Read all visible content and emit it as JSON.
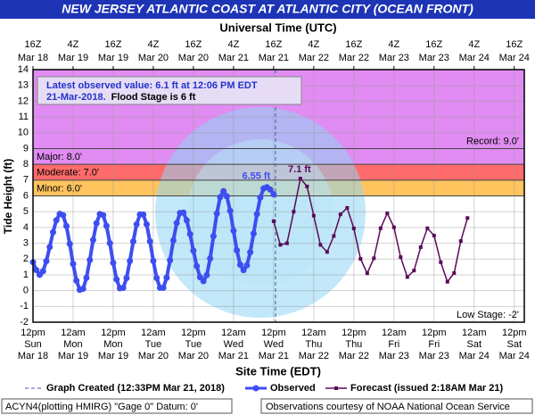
{
  "chart_data": {
    "type": "line",
    "title": "NEW JERSEY ATLANTIC COAST AT ATLANTIC CITY (OCEAN FRONT)",
    "top_axis_label": "Universal Time (UTC)",
    "xlabel": "Site Time (EDT)",
    "ylabel": "Tide Height (ft)",
    "grid": true,
    "xlim": [
      0,
      147
    ],
    "ylim": [
      -2,
      14
    ],
    "yticks": [
      -2,
      -1,
      0,
      1,
      2,
      3,
      4,
      5,
      6,
      7,
      8,
      9,
      10,
      11,
      12,
      13,
      14
    ],
    "xticks": [
      {
        "value": 0,
        "label": [
          "12pm",
          "Sun",
          "Mar 18"
        ]
      },
      {
        "value": 12,
        "label": [
          "12am",
          "Mon",
          "Mar 19"
        ]
      },
      {
        "value": 24,
        "label": [
          "12pm",
          "Mon",
          "Mar 19"
        ]
      },
      {
        "value": 36,
        "label": [
          "12am",
          "Tue",
          "Mar 20"
        ]
      },
      {
        "value": 48,
        "label": [
          "12pm",
          "Tue",
          "Mar 20"
        ]
      },
      {
        "value": 60,
        "label": [
          "12am",
          "Wed",
          "Mar 21"
        ]
      },
      {
        "value": 72,
        "label": [
          "12pm",
          "Wed",
          "Mar 21"
        ]
      },
      {
        "value": 84,
        "label": [
          "12am",
          "Thu",
          "Mar 22"
        ]
      },
      {
        "value": 96,
        "label": [
          "12pm",
          "Thu",
          "Mar 22"
        ]
      },
      {
        "value": 108,
        "label": [
          "12am",
          "Fri",
          "Mar 23"
        ]
      },
      {
        "value": 120,
        "label": [
          "12pm",
          "Fri",
          "Mar 23"
        ]
      },
      {
        "value": 132,
        "label": [
          "12am",
          "Sat",
          "Mar 24"
        ]
      },
      {
        "value": 144,
        "label": [
          "12pm",
          "Sat",
          "Mar 24"
        ]
      }
    ],
    "x2ticks": [
      {
        "value": 0,
        "label": [
          "16Z",
          "Mar 18"
        ]
      },
      {
        "value": 12,
        "label": [
          "4Z",
          "Mar 19"
        ]
      },
      {
        "value": 24,
        "label": [
          "16Z",
          "Mar 19"
        ]
      },
      {
        "value": 36,
        "label": [
          "4Z",
          "Mar 20"
        ]
      },
      {
        "value": 48,
        "label": [
          "16Z",
          "Mar 20"
        ]
      },
      {
        "value": 60,
        "label": [
          "4Z",
          "Mar 21"
        ]
      },
      {
        "value": 72,
        "label": [
          "16Z",
          "Mar 21"
        ]
      },
      {
        "value": 84,
        "label": [
          "4Z",
          "Mar 22"
        ]
      },
      {
        "value": 96,
        "label": [
          "16Z",
          "Mar 22"
        ]
      },
      {
        "value": 108,
        "label": [
          "4Z",
          "Mar 23"
        ]
      },
      {
        "value": 120,
        "label": [
          "16Z",
          "Mar 23"
        ]
      },
      {
        "value": 132,
        "label": [
          "4Z",
          "Mar 24"
        ]
      },
      {
        "value": 144,
        "label": [
          "16Z",
          "Mar 24"
        ]
      }
    ],
    "stages": [
      {
        "label": "Record: 9.0'",
        "value": 9
      },
      {
        "label": "Major: 8.0'",
        "value": 8,
        "color": "#e08cf2"
      },
      {
        "label": "Moderate: 7.0'",
        "value": 7,
        "color": "#ff6a6a"
      },
      {
        "label": "Minor: 6.0'",
        "value": 6,
        "color": "#ffc45e"
      },
      {
        "label": "Low Stage: -2'",
        "value": -2
      }
    ],
    "graph_created": {
      "label": "Graph Created (12:33PM Mar 21, 2018)",
      "x": 72.55,
      "color": "#4455aa"
    },
    "series": [
      {
        "name": "Observed",
        "color": "#3d4ef0",
        "x": [
          0,
          1,
          2,
          3,
          4,
          5,
          6,
          7,
          8,
          9,
          10,
          11,
          12,
          13,
          14,
          15,
          16,
          17,
          18,
          19,
          20,
          21,
          22,
          23,
          24,
          25,
          26,
          27,
          28,
          29,
          30,
          31,
          32,
          33,
          34,
          35,
          36,
          37,
          38,
          39,
          40,
          41,
          42,
          43,
          44,
          45,
          46,
          47,
          48,
          49,
          50,
          51,
          52,
          53,
          54,
          55,
          56,
          57,
          58,
          59,
          60,
          61,
          62,
          63,
          64,
          65,
          66,
          67,
          68,
          69,
          70,
          71,
          72
        ],
        "values": [
          1.8,
          1.3,
          1.0,
          1.23,
          1.87,
          2.76,
          3.7,
          4.46,
          4.86,
          4.78,
          4.09,
          2.96,
          1.69,
          0.63,
          0.05,
          0.12,
          0.81,
          1.94,
          3.21,
          4.27,
          4.85,
          4.78,
          4.1,
          3.0,
          1.76,
          0.71,
          0.15,
          0.18,
          0.8,
          1.88,
          3.12,
          4.2,
          4.82,
          4.82,
          4.2,
          3.12,
          1.88,
          0.8,
          0.18,
          0.18,
          0.82,
          1.92,
          3.18,
          4.28,
          4.92,
          4.94,
          4.45,
          3.58,
          2.53,
          1.55,
          0.85,
          0.6,
          0.98,
          2.03,
          3.45,
          4.88,
          5.92,
          6.3,
          5.97,
          5.05,
          3.8,
          2.55,
          1.64,
          1.3,
          1.6,
          2.43,
          3.61,
          4.85,
          5.89,
          6.47,
          6.55,
          6.4,
          6.1
        ],
        "value_labels": [
          null,
          null,
          null,
          null,
          null,
          null,
          null,
          null,
          null,
          null,
          null,
          null,
          null,
          null,
          null,
          null,
          null,
          null,
          null,
          null,
          null,
          null,
          null,
          null,
          null,
          null,
          null,
          null,
          null,
          null,
          null,
          null,
          null,
          null,
          null,
          null,
          null,
          null,
          null,
          null,
          null,
          null,
          null,
          null,
          null,
          null,
          null,
          null,
          null,
          null,
          null,
          null,
          null,
          null,
          null,
          null,
          null,
          null,
          null,
          null,
          null,
          null,
          null,
          null,
          null,
          null,
          null,
          null,
          null,
          null,
          "6.55 ft",
          null,
          null
        ]
      },
      {
        "name": "Forecast (issued 2:18AM Mar 21)",
        "color": "#5a0a5a",
        "x": [
          72,
          74,
          76,
          78,
          80,
          82,
          84,
          86,
          88,
          90,
          92,
          94,
          96,
          98,
          100,
          102,
          104,
          106,
          108,
          110,
          112,
          114,
          116,
          118,
          120,
          122,
          124,
          126,
          128,
          130
        ],
        "values": [
          4.4,
          2.9,
          3.0,
          5.0,
          7.1,
          6.6,
          4.75,
          2.9,
          2.45,
          3.46,
          4.83,
          5.24,
          3.94,
          2.01,
          1.1,
          2.05,
          3.95,
          4.9,
          4.01,
          2.12,
          0.86,
          1.27,
          2.75,
          3.95,
          3.49,
          1.8,
          0.56,
          1.11,
          3.14,
          4.6
        ],
        "value_labels": [
          null,
          null,
          null,
          null,
          "7.1 ft",
          null,
          null,
          null,
          null,
          null,
          null,
          null,
          null,
          null,
          null,
          null,
          null,
          null,
          null,
          null,
          null,
          null,
          null,
          null,
          null,
          null,
          null,
          null,
          null,
          null
        ]
      }
    ],
    "latest": {
      "line1": "Latest observed value: 6.1 ft at 12:06 PM EDT",
      "date": "21-Mar-2018.",
      "note": "Flood Stage is 6 ft"
    },
    "footer_left": "ACYN4(plotting HMIRG) \"Gage 0\" Datum: 0'",
    "footer_right": "Observations courtesy of NOAA National Ocean Service"
  }
}
